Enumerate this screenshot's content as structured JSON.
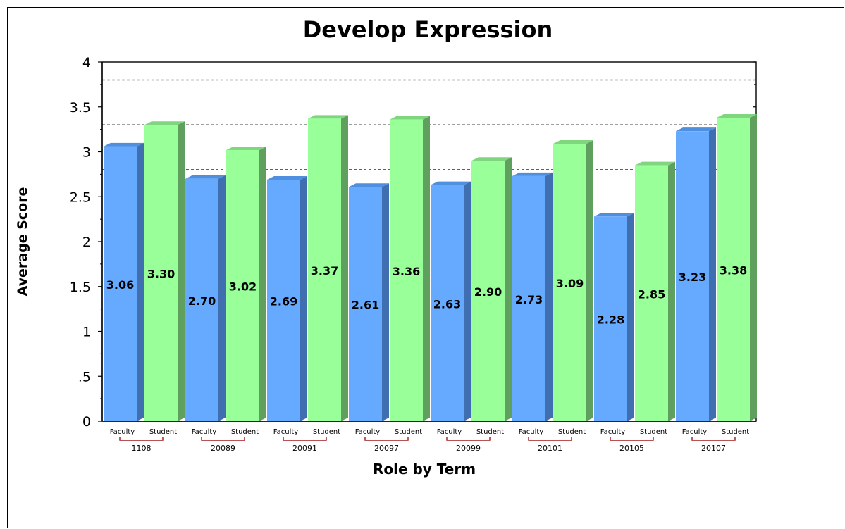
{
  "chart_data": {
    "type": "bar",
    "title": "Develop Expression",
    "xlabel": "Role by Term",
    "ylabel": "Average Score",
    "ylim": [
      0,
      4
    ],
    "y_ticks": [
      "0",
      ".5",
      "1",
      "1.5",
      "2",
      "2.5",
      "3",
      "3.5",
      "4"
    ],
    "y_tick_values": [
      0,
      0.5,
      1,
      1.5,
      2,
      2.5,
      3,
      3.5,
      4
    ],
    "reference_lines": [
      2.8,
      3.3,
      3.8
    ],
    "groups": [
      "1108",
      "20089",
      "20091",
      "20097",
      "20099",
      "20101",
      "20105",
      "20107"
    ],
    "roles": [
      "Faculty",
      "Student"
    ],
    "series": [
      {
        "role": "Faculty",
        "values": [
          3.06,
          2.7,
          2.69,
          2.61,
          2.63,
          2.73,
          2.28,
          3.23
        ],
        "labels": [
          "3.06",
          "2.70",
          "2.69",
          "2.61",
          "2.63",
          "2.73",
          "2.28",
          "3.23"
        ]
      },
      {
        "role": "Student",
        "values": [
          3.3,
          3.02,
          3.37,
          3.36,
          2.9,
          3.09,
          2.85,
          3.38
        ],
        "labels": [
          "3.30",
          "3.02",
          "3.37",
          "3.36",
          "2.90",
          "3.09",
          "2.85",
          "3.38"
        ]
      }
    ],
    "colors": {
      "faculty_face": "#66aaff",
      "faculty_side": "#3f6fb0",
      "faculty_top": "#4f8fe0",
      "student_face": "#99ff99",
      "student_side": "#5fa05f",
      "student_top": "#7fd67f",
      "bracket": "#a01818"
    }
  }
}
